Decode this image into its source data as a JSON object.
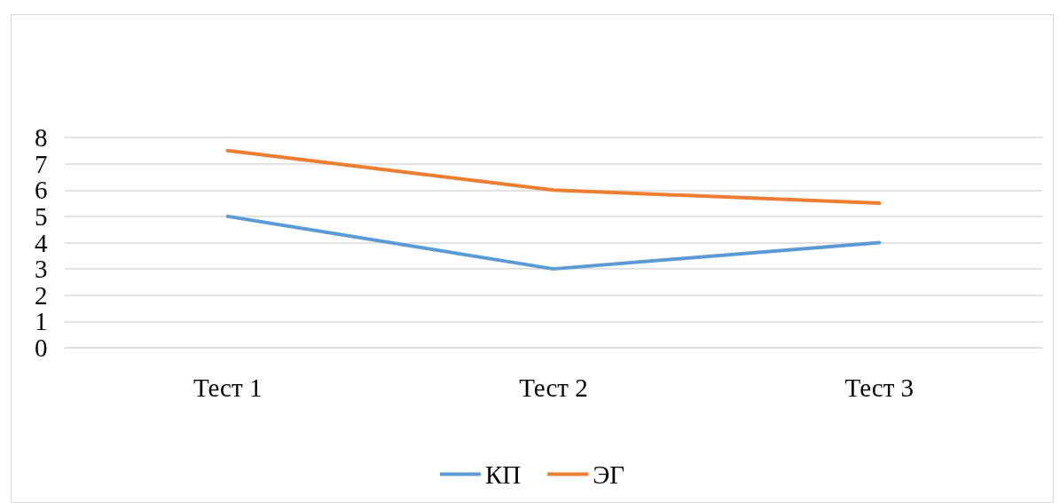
{
  "chart_data": {
    "type": "line",
    "categories": [
      "Тест 1",
      "Тест 2",
      "Тест 3"
    ],
    "series": [
      {
        "name": "КП",
        "color": "#5b9bd5",
        "values": [
          5,
          3,
          4
        ]
      },
      {
        "name": "ЭГ",
        "color": "#ed7d31",
        "values": [
          7.5,
          6,
          5.5
        ]
      }
    ],
    "ylim": [
      0,
      8
    ],
    "yticks": [
      0,
      1,
      2,
      3,
      4,
      5,
      6,
      7,
      8
    ],
    "grid": "y",
    "legend": "bottom",
    "marker": "none",
    "line_style": "solid"
  }
}
